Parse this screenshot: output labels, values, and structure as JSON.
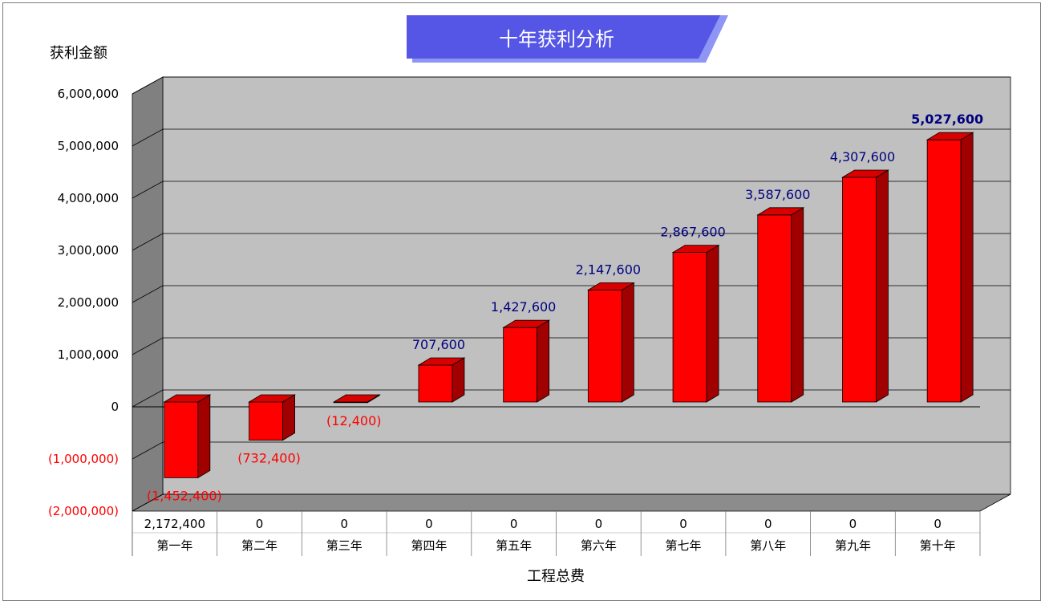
{
  "chart_data": {
    "type": "bar",
    "title": "十年获利分析",
    "ylabel": "获利金额",
    "xlabel": "工程总费",
    "categories": [
      "第一年",
      "第二年",
      "第三年",
      "第四年",
      "第五年",
      "第六年",
      "第七年",
      "第八年",
      "第九年",
      "第十年"
    ],
    "series": [
      {
        "values": [
          -1452400,
          -732400,
          -12400,
          707600,
          1427600,
          2147600,
          2867600,
          3587600,
          4307600,
          5027600
        ]
      }
    ],
    "data_labels": [
      "(1,452,400)",
      "(732,400)",
      "(12,400)",
      "707,600",
      "1,427,600",
      "2,147,600",
      "2,867,600",
      "3,587,600",
      "4,307,600",
      "5,027,600"
    ],
    "ylim": [
      -2000000,
      6000000
    ],
    "yticks": [
      6000000,
      5000000,
      4000000,
      3000000,
      2000000,
      1000000,
      0,
      -1000000,
      -2000000
    ],
    "ytick_labels": [
      "6,000,000",
      "5,000,000",
      "4,000,000",
      "3,000,000",
      "2,000,000",
      "1,000,000",
      "0",
      "(1,000,000)",
      "(2,000,000)"
    ],
    "data_table": {
      "values": [
        "2,172,400",
        "0",
        "0",
        "0",
        "0",
        "0",
        "0",
        "0",
        "0",
        "0"
      ]
    },
    "grid": true,
    "style": "3d-column",
    "colors": {
      "bar_front": "#ff0000",
      "bar_side": "#a10000",
      "bar_top": "#d90000",
      "wall": "#c0c0c0",
      "side_wall": "#808080",
      "floor": "#8c8c8c",
      "positive_label": "#000080",
      "negative_label": "#ff0000",
      "title_banner": "#5555e6",
      "title_banner_back": "#8f95f5"
    }
  }
}
